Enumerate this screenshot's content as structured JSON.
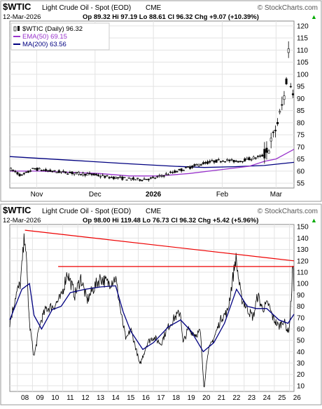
{
  "chart_data": [
    {
      "type": "candlestick",
      "header": {
        "symbol": "$WTIC",
        "name": "Light Crude Oil - Spot (EOD)",
        "exchange": "CME",
        "watermark": "© StockCharts.com",
        "date": "12-Mar-2026",
        "ohlc": "Op 89.32  Hi 97.19  Lo 88.61  Cl 96.32  Chg +9.07 (+10.39%)",
        "change_sign": "▲"
      },
      "legend": [
        {
          "label": "$WTIC (Daily) 96.32",
          "color": "#000000",
          "icon": "candle-icon"
        },
        {
          "label": "EMA(50) 69.15",
          "color": "#9933cc"
        },
        {
          "label": "MA(200) 63.56",
          "color": "#000080"
        }
      ],
      "x_labels": [
        {
          "label": "Nov",
          "day": 18,
          "bold": false
        },
        {
          "label": "Dec",
          "day": 57,
          "bold": false
        },
        {
          "label": "2026",
          "day": 96,
          "bold": true
        },
        {
          "label": "Feb",
          "day": 142,
          "bold": false
        },
        {
          "label": "Mar",
          "day": 178,
          "bold": false
        }
      ],
      "x_range": [
        0,
        190
      ],
      "y_ticks": [
        55,
        60,
        65,
        70,
        75,
        80,
        85,
        90,
        95,
        100,
        105,
        110,
        115,
        120
      ],
      "ylim": [
        53,
        122
      ],
      "price_path": [
        [
          0,
          61
        ],
        [
          8,
          58
        ],
        [
          16,
          61
        ],
        [
          26,
          60
        ],
        [
          36,
          59.5
        ],
        [
          46,
          59
        ],
        [
          56,
          58.5
        ],
        [
          66,
          57.5
        ],
        [
          76,
          57
        ],
        [
          86,
          56.5
        ],
        [
          96,
          57
        ],
        [
          104,
          58.5
        ],
        [
          112,
          60
        ],
        [
          120,
          61.5
        ],
        [
          128,
          63
        ],
        [
          136,
          64
        ],
        [
          144,
          64.5
        ],
        [
          152,
          64
        ],
        [
          160,
          65
        ],
        [
          168,
          66
        ],
        [
          172,
          68
        ],
        [
          176,
          74
        ],
        [
          180,
          82
        ],
        [
          184,
          92
        ],
        [
          186,
          105
        ],
        [
          187,
          119
        ],
        [
          188,
          90
        ],
        [
          190,
          96
        ]
      ],
      "ema50_path": [
        [
          0,
          60
        ],
        [
          20,
          60
        ],
        [
          40,
          59.5
        ],
        [
          60,
          59
        ],
        [
          80,
          58
        ],
        [
          100,
          58
        ],
        [
          120,
          59
        ],
        [
          140,
          60.5
        ],
        [
          160,
          62
        ],
        [
          170,
          64
        ],
        [
          178,
          65
        ],
        [
          184,
          67
        ],
        [
          190,
          69
        ]
      ],
      "ma200_path": [
        [
          0,
          66
        ],
        [
          40,
          64.5
        ],
        [
          80,
          63
        ],
        [
          110,
          62
        ],
        [
          130,
          61.5
        ],
        [
          150,
          61.8
        ],
        [
          170,
          62.3
        ],
        [
          190,
          63.6
        ]
      ]
    },
    {
      "type": "line",
      "header": {
        "symbol": "$WTIC",
        "name": "Light Crude Oil - Spot (EOD)",
        "exchange": "CME",
        "watermark": "© StockCharts.com",
        "date": "12-Mar-2026",
        "ohlc": "Op 98.00  Hi 119.48  Lo 76.73  Cl 96.32  Chg +5.42 (+5.96%)",
        "change_sign": "▲"
      },
      "x_labels": [
        "08",
        "09",
        "10",
        "11",
        "12",
        "13",
        "14",
        "15",
        "16",
        "17",
        "18",
        "19",
        "20",
        "21",
        "22",
        "23",
        "24",
        "25",
        "26"
      ],
      "x_range": [
        2007.5,
        2026.3
      ],
      "y_ticks": [
        10,
        20,
        30,
        40,
        50,
        60,
        70,
        80,
        90,
        100,
        110,
        120,
        130,
        140,
        150
      ],
      "ylim": [
        5,
        152
      ],
      "trendline": [
        [
          2008.5,
          147
        ],
        [
          2026.3,
          120
        ]
      ],
      "resistance": [
        [
          2010.7,
          115
        ],
        [
          2026.3,
          115
        ]
      ],
      "price_path": [
        [
          2007.5,
          65
        ],
        [
          2007.9,
          90
        ],
        [
          2008.2,
          100
        ],
        [
          2008.5,
          145
        ],
        [
          2008.8,
          65
        ],
        [
          2009.1,
          35
        ],
        [
          2009.5,
          65
        ],
        [
          2009.9,
          78
        ],
        [
          2010.4,
          80
        ],
        [
          2010.9,
          88
        ],
        [
          2011.3,
          110
        ],
        [
          2011.8,
          90
        ],
        [
          2012.2,
          105
        ],
        [
          2012.6,
          85
        ],
        [
          2013.0,
          95
        ],
        [
          2013.5,
          105
        ],
        [
          2014.0,
          100
        ],
        [
          2014.5,
          105
        ],
        [
          2014.9,
          70
        ],
        [
          2015.2,
          50
        ],
        [
          2015.5,
          60
        ],
        [
          2015.9,
          40
        ],
        [
          2016.1,
          28
        ],
        [
          2016.6,
          48
        ],
        [
          2017.0,
          53
        ],
        [
          2017.5,
          47
        ],
        [
          2017.9,
          60
        ],
        [
          2018.4,
          70
        ],
        [
          2018.8,
          75
        ],
        [
          2018.95,
          47
        ],
        [
          2019.3,
          60
        ],
        [
          2019.8,
          55
        ],
        [
          2020.1,
          58
        ],
        [
          2020.3,
          18
        ],
        [
          2020.35,
          8
        ],
        [
          2020.6,
          40
        ],
        [
          2021.0,
          52
        ],
        [
          2021.5,
          70
        ],
        [
          2021.9,
          75
        ],
        [
          2022.2,
          100
        ],
        [
          2022.45,
          123
        ],
        [
          2022.8,
          88
        ],
        [
          2023.2,
          78
        ],
        [
          2023.6,
          70
        ],
        [
          2023.9,
          90
        ],
        [
          2024.2,
          78
        ],
        [
          2024.6,
          82
        ],
        [
          2024.9,
          70
        ],
        [
          2025.3,
          62
        ],
        [
          2025.6,
          68
        ],
        [
          2025.9,
          58
        ],
        [
          2026.0,
          62
        ],
        [
          2026.15,
          95
        ],
        [
          2026.22,
          119
        ],
        [
          2026.3,
          96
        ]
      ],
      "ma200_path": [
        [
          2007.5,
          68
        ],
        [
          2008.3,
          95
        ],
        [
          2008.8,
          100
        ],
        [
          2009.1,
          72
        ],
        [
          2009.6,
          60
        ],
        [
          2010.3,
          77
        ],
        [
          2010.9,
          80
        ],
        [
          2011.5,
          92
        ],
        [
          2012.5,
          95
        ],
        [
          2013.5,
          97
        ],
        [
          2014.5,
          98
        ],
        [
          2015.0,
          75
        ],
        [
          2015.5,
          58
        ],
        [
          2016.3,
          42
        ],
        [
          2017.0,
          48
        ],
        [
          2018.0,
          62
        ],
        [
          2018.8,
          68
        ],
        [
          2019.5,
          58
        ],
        [
          2020.3,
          40
        ],
        [
          2021.0,
          48
        ],
        [
          2021.7,
          65
        ],
        [
          2022.5,
          95
        ],
        [
          2023.2,
          80
        ],
        [
          2023.8,
          78
        ],
        [
          2024.5,
          78
        ],
        [
          2025.3,
          68
        ],
        [
          2025.9,
          65
        ],
        [
          2026.3,
          73
        ]
      ]
    }
  ]
}
